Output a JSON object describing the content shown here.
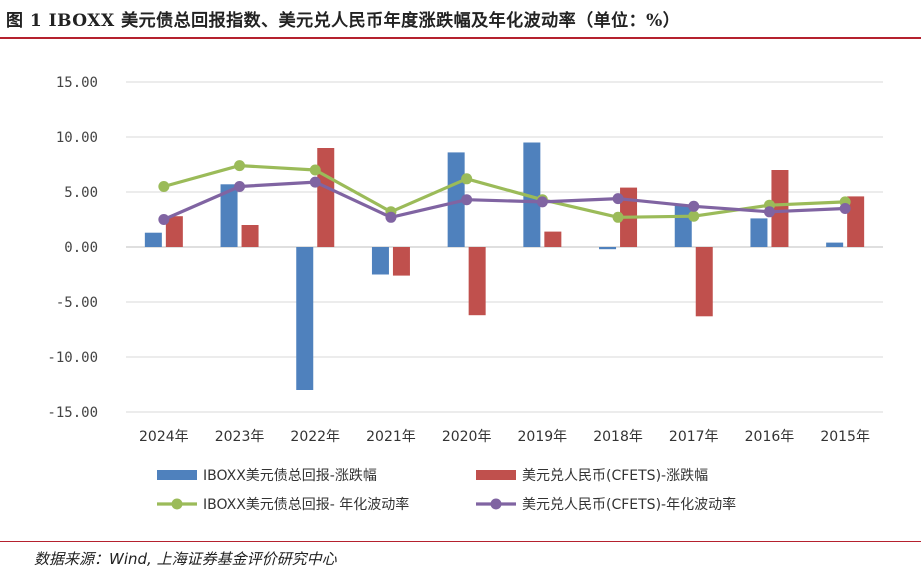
{
  "page": {
    "title": "图 1 IBOXX 美元债总回报指数、美元兑人民币年度涨跌幅及年化波动率（单位：%）",
    "source": "数据来源：Wind, 上海证券基金评价研究中心"
  },
  "chart_data": {
    "type": "bar",
    "categories": [
      "2024年",
      "2023年",
      "2022年",
      "2021年",
      "2020年",
      "2019年",
      "2018年",
      "2017年",
      "2016年",
      "2015年"
    ],
    "ylim": [
      -15,
      15
    ],
    "yticks": [
      15,
      10,
      5,
      0,
      -5,
      -10,
      -15
    ],
    "ytick_labels": [
      "15.00",
      "10.00",
      "5.00",
      "0.00",
      "-5.00",
      "-10.00",
      "-15.00"
    ],
    "grid": true,
    "legend_position": "bottom",
    "series": [
      {
        "name": "IBOXX美元债总回报-涨跌幅",
        "kind": "bar",
        "color": "#4f81bd",
        "values": [
          1.3,
          5.7,
          -13.0,
          -2.5,
          8.6,
          9.5,
          -0.2,
          3.8,
          2.6,
          0.4
        ]
      },
      {
        "name": "美元兑人民币(CFETS)-涨跌幅",
        "kind": "bar",
        "color": "#c0504d",
        "values": [
          2.8,
          2.0,
          9.0,
          -2.6,
          -6.2,
          1.4,
          5.4,
          -6.3,
          7.0,
          4.6
        ]
      },
      {
        "name": "IBOXX美元债总回报- 年化波动率",
        "kind": "line",
        "color": "#9bbb59",
        "values": [
          5.5,
          7.4,
          7.0,
          3.2,
          6.2,
          4.3,
          2.7,
          2.8,
          3.8,
          4.1
        ]
      },
      {
        "name": "美元兑人民币(CFETS)-年化波动率",
        "kind": "line",
        "color": "#8064a2",
        "values": [
          2.5,
          5.5,
          5.9,
          2.7,
          4.3,
          4.1,
          4.4,
          3.7,
          3.2,
          3.5
        ]
      }
    ]
  }
}
